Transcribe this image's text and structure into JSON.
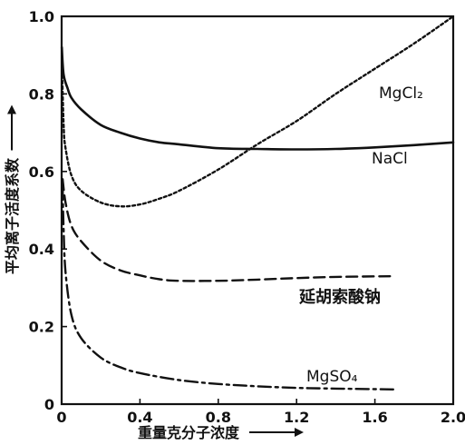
{
  "chart_data": {
    "type": "line",
    "xlabel": "重量克分子浓度",
    "ylabel": "平均离子活度系数",
    "xlim": [
      0,
      2.0
    ],
    "ylim": [
      0,
      1.0
    ],
    "x_ticks": [
      "0",
      "0.4",
      "0.8",
      "1.2",
      "1.6",
      "2.0"
    ],
    "y_ticks": [
      "0",
      "0.2",
      "0.4",
      "0.6",
      "0.8",
      "1.0"
    ],
    "grid": false,
    "series": [
      {
        "name": "NaCl",
        "style": "solid",
        "x": [
          0.001,
          0.01,
          0.03,
          0.05,
          0.1,
          0.2,
          0.3,
          0.4,
          0.5,
          0.6,
          0.8,
          1.0,
          1.2,
          1.4,
          1.6,
          1.8,
          2.0
        ],
        "y": [
          0.92,
          0.85,
          0.815,
          0.79,
          0.76,
          0.72,
          0.7,
          0.685,
          0.675,
          0.67,
          0.66,
          0.658,
          0.657,
          0.658,
          0.662,
          0.668,
          0.675
        ]
      },
      {
        "name": "MgCl₂",
        "style": "dotted",
        "x": [
          0.001,
          0.01,
          0.02,
          0.05,
          0.1,
          0.2,
          0.3,
          0.4,
          0.5,
          0.6,
          0.8,
          1.0,
          1.2,
          1.4,
          1.6,
          1.8,
          2.0
        ],
        "y": [
          0.89,
          0.72,
          0.66,
          0.59,
          0.55,
          0.52,
          0.51,
          0.515,
          0.53,
          0.55,
          0.605,
          0.67,
          0.73,
          0.8,
          0.865,
          0.93,
          1.0
        ]
      },
      {
        "name": "延胡索酸钠",
        "style": "dashed",
        "x": [
          0.005,
          0.02,
          0.05,
          0.1,
          0.2,
          0.3,
          0.4,
          0.5,
          0.6,
          0.8,
          1.0,
          1.2,
          1.4,
          1.7
        ],
        "y": [
          0.58,
          0.52,
          0.46,
          0.42,
          0.37,
          0.345,
          0.332,
          0.322,
          0.318,
          0.318,
          0.321,
          0.325,
          0.328,
          0.33
        ]
      },
      {
        "name": "MgSO₄",
        "style": "dashdot",
        "x": [
          0.005,
          0.01,
          0.02,
          0.05,
          0.1,
          0.2,
          0.3,
          0.4,
          0.6,
          0.8,
          1.0,
          1.2,
          1.4,
          1.7
        ],
        "y": [
          0.56,
          0.45,
          0.34,
          0.23,
          0.17,
          0.12,
          0.095,
          0.08,
          0.062,
          0.052,
          0.046,
          0.042,
          0.04,
          0.038
        ]
      }
    ]
  }
}
